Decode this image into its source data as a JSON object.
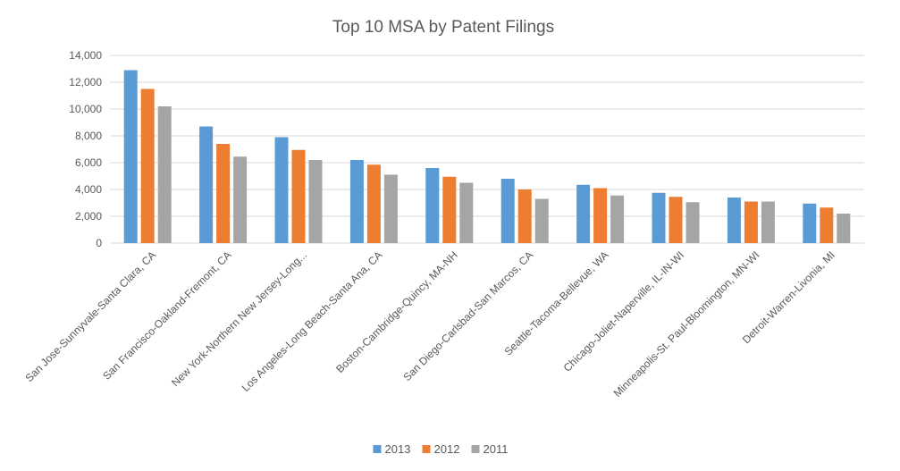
{
  "chart_data": {
    "type": "bar",
    "title": "Top 10 MSA by Patent Filings",
    "xlabel": "",
    "ylabel": "",
    "ylim": [
      0,
      14000
    ],
    "yticks": [
      0,
      2000,
      4000,
      6000,
      8000,
      10000,
      12000,
      14000
    ],
    "ytick_labels": [
      "0",
      "2,000",
      "4,000",
      "6,000",
      "8,000",
      "10,000",
      "12,000",
      "14,000"
    ],
    "grid": true,
    "legend_position": "bottom",
    "categories": [
      "San Jose-Sunnyvale-Santa Clara, CA",
      "San Francisco-Oakland-Fremont, CA",
      "New York-Northern New Jersey-Long...",
      "Los Angeles-Long Beach-Santa Ana, CA",
      "Boston-Cambridge-Quincy, MA-NH",
      "San Diego-Carlsbad-San Marcos, CA",
      "Seattle-Tacoma-Bellevue, WA",
      "Chicago-Joliet-Naperville, IL-IN-WI",
      "Minneapolis-St. Paul-Bloomington, MN-WI",
      "Detroit-Warren-Livonia, MI"
    ],
    "series": [
      {
        "name": "2013",
        "color": "#5b9bd5",
        "values": [
          12900,
          8700,
          7900,
          6200,
          5600,
          4800,
          4350,
          3750,
          3400,
          2950
        ]
      },
      {
        "name": "2012",
        "color": "#ed7d31",
        "values": [
          11500,
          7400,
          6950,
          5850,
          4950,
          4000,
          4100,
          3450,
          3100,
          2650
        ]
      },
      {
        "name": "2011",
        "color": "#a5a5a5",
        "values": [
          10200,
          6450,
          6200,
          5100,
          4500,
          3300,
          3550,
          3050,
          3100,
          2200
        ]
      }
    ]
  }
}
